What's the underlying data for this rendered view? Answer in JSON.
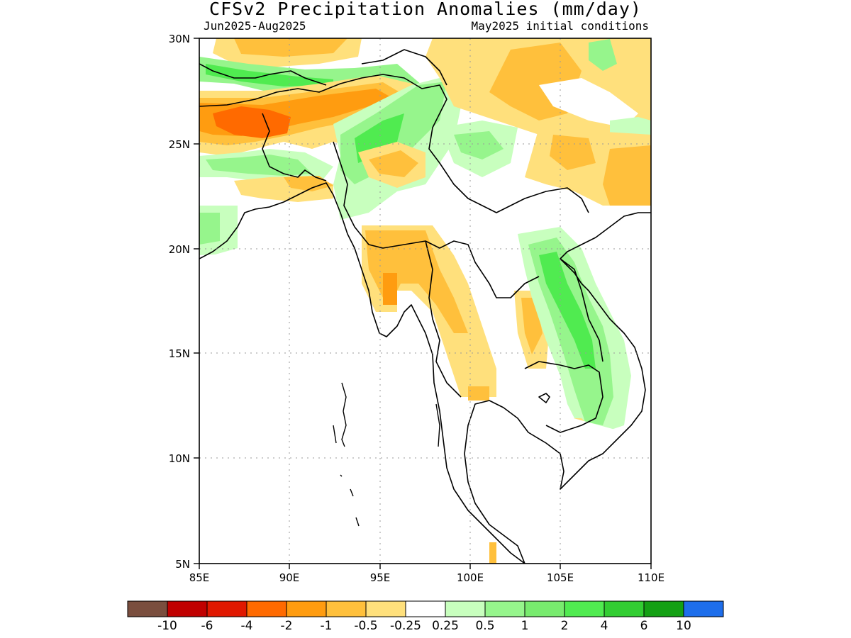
{
  "title": "CFSv2 Precipitation Anomalies (mm/day)",
  "subtitle_left": "Jun2025-Aug2025",
  "subtitle_right": "May2025 initial conditions",
  "latitude_labels": [
    "30N",
    "25N",
    "20N",
    "15N",
    "10N",
    "5N"
  ],
  "longitude_labels": [
    "85E",
    "90E",
    "95E",
    "100E",
    "105E",
    "110E"
  ],
  "extent": {
    "lon": [
      85,
      110
    ],
    "lat": [
      5,
      30
    ]
  },
  "colorbar": {
    "colors": [
      "#7a4e3e",
      "#c00000",
      "#e01800",
      "#ff6a00",
      "#ff9c10",
      "#ffc03c",
      "#ffe07c",
      "#ffffff",
      "#c8ffbe",
      "#96f58c",
      "#78eb6e",
      "#50eb50",
      "#32cd32",
      "#14a014",
      "#1e6eeb"
    ],
    "labels": [
      "-10",
      "-6",
      "-4",
      "-2",
      "-1",
      "-0.5",
      "-0.25",
      "0.25",
      "0.5",
      "1",
      "2",
      "4",
      "6",
      "10"
    ]
  }
}
